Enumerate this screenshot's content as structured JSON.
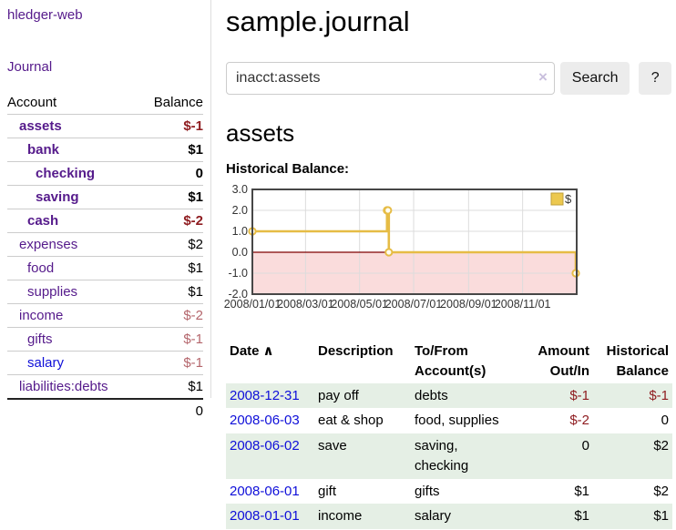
{
  "app": {
    "title": "hledger-web"
  },
  "colors": {
    "link_purple": "#551a8b",
    "link_blue": "#0f0fd9",
    "negative_strong": "#8f1d21",
    "negative_muted": "#b4666c",
    "row_stripe_green": "#e5efe5",
    "chart_line_gold": "#e6bc45",
    "chart_negative_region": "#fadcdc",
    "chart_zero_line": "#7f0000"
  },
  "icons": {
    "sort_asc": "∧",
    "clear": "×",
    "legend_swatch": "gold-square"
  },
  "sidebar": {
    "journal_link": "Journal",
    "accounts": {
      "headers": {
        "account": "Account",
        "balance": "Balance"
      },
      "rows": [
        {
          "name": "assets",
          "balance": "$-1",
          "level": 1,
          "bold": true,
          "neg": "strong"
        },
        {
          "name": "bank",
          "balance": "$1",
          "level": 2,
          "bold": true
        },
        {
          "name": "checking",
          "balance": "0",
          "level": 3,
          "bold": true
        },
        {
          "name": "saving",
          "balance": "$1",
          "level": 3,
          "bold": true
        },
        {
          "name": "cash",
          "balance": "$-2",
          "level": 2,
          "bold": true,
          "neg": "strong"
        },
        {
          "name": "expenses",
          "balance": "$2",
          "level": 1
        },
        {
          "name": "food",
          "balance": "$1",
          "level": 2
        },
        {
          "name": "supplies",
          "balance": "$1",
          "level": 2
        },
        {
          "name": "income",
          "balance": "$-2",
          "level": 1,
          "neg": "muted"
        },
        {
          "name": "gifts",
          "balance": "$-1",
          "level": 2,
          "neg": "muted"
        },
        {
          "name": "salary",
          "balance": "$-1",
          "level": 2,
          "neg": "muted",
          "link": "blue"
        },
        {
          "name": "liabilities:debts",
          "balance": "$1",
          "level": 1
        }
      ],
      "total": "0"
    }
  },
  "main": {
    "title": "sample.journal",
    "search": {
      "value": "inacct:assets",
      "button_label": "Search",
      "help_label": "?"
    },
    "account_heading": "assets",
    "chart_heading": "Historical Balance:"
  },
  "chart_data": {
    "type": "line",
    "step": true,
    "title": "Historical Balance:",
    "series": [
      {
        "name": "$",
        "color": "#e6bc45",
        "points": [
          {
            "date": "2008-01-01",
            "value": 1
          },
          {
            "date": "2008-06-01",
            "value": 2
          },
          {
            "date": "2008-06-02",
            "value": 2
          },
          {
            "date": "2008-06-03",
            "value": 0
          },
          {
            "date": "2008-12-31",
            "value": -1
          }
        ]
      }
    ],
    "x_domain": [
      "2008-01-01",
      "2009-01-01"
    ],
    "x_ticks": [
      "2008/01/01",
      "2008/03/01",
      "2008/05/01",
      "2008/07/01",
      "2008/09/01",
      "2008/11/01"
    ],
    "y_ticks": [
      3.0,
      2.0,
      1.0,
      0.0,
      -1.0,
      -2.0
    ],
    "ylim": [
      -2,
      3
    ],
    "grid": true,
    "legend_position": "top-right",
    "negative_region_color": "#fadcdc",
    "zero_line_color": "#7f0000"
  },
  "register": {
    "headers": {
      "date": "Date",
      "description": "Description",
      "accounts": "To/From Account(s)",
      "amount": "Amount Out/In",
      "balance": "Historical Balance"
    },
    "rows": [
      {
        "date": "2008-12-31",
        "description": "pay off",
        "accounts": "debts",
        "amount": "$-1",
        "balance": "$-1"
      },
      {
        "date": "2008-06-03",
        "description": "eat & shop",
        "accounts": "food, supplies",
        "amount": "$-2",
        "balance": "0"
      },
      {
        "date": "2008-06-02",
        "description": "save",
        "accounts": "saving, checking",
        "amount": "0",
        "balance": "$2"
      },
      {
        "date": "2008-06-01",
        "description": "gift",
        "accounts": "gifts",
        "amount": "$1",
        "balance": "$2"
      },
      {
        "date": "2008-01-01",
        "description": "income",
        "accounts": "salary",
        "amount": "$1",
        "balance": "$1"
      }
    ]
  }
}
